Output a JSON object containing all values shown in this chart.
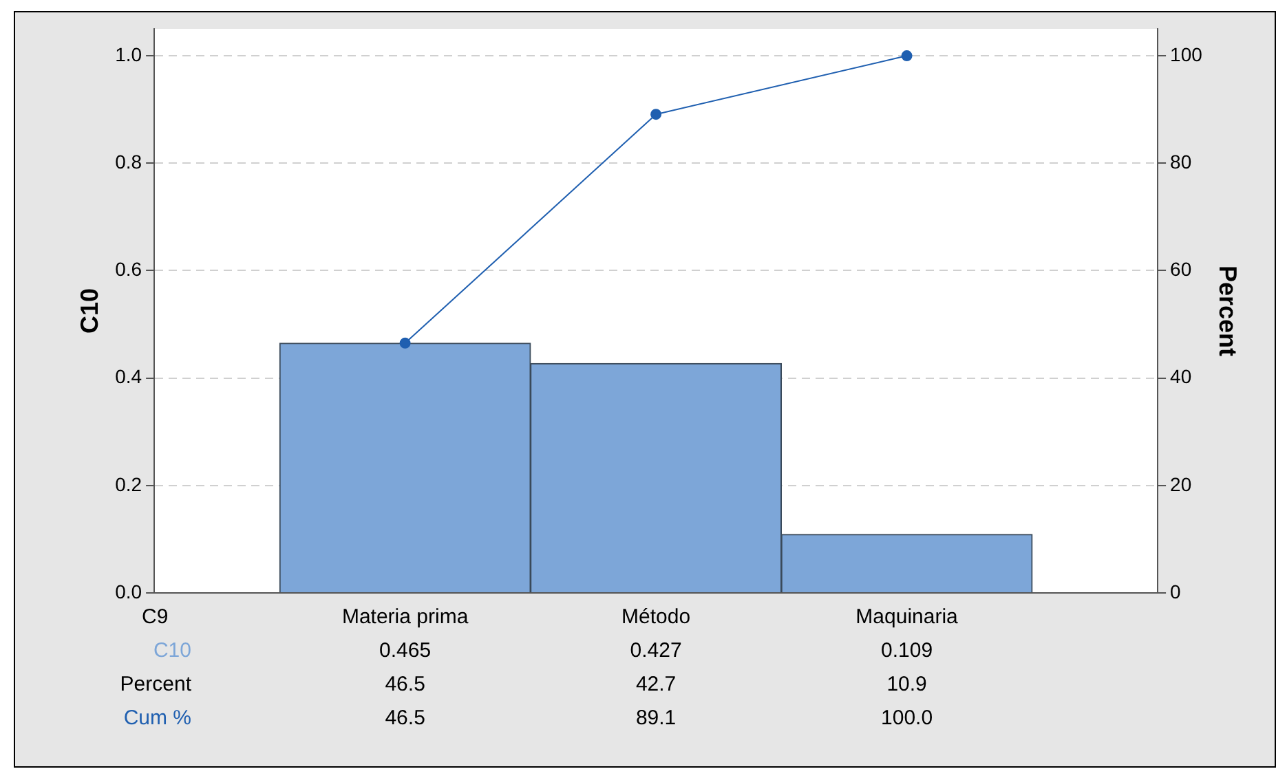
{
  "chart_data": {
    "type": "bar",
    "xlabel": "C9",
    "ylabel": "C10",
    "y2label": "Percent",
    "categories": [
      "Materia prima",
      "Método",
      "Maquinaria"
    ],
    "series": [
      {
        "name": "C10",
        "color": "#7da6d8",
        "values": [
          0.465,
          0.427,
          0.109
        ],
        "value_labels": [
          "0.465",
          "0.427",
          "0.109"
        ]
      },
      {
        "name": "Cum %",
        "type": "line",
        "axis": "y2",
        "color": "#1f5fb0",
        "values": [
          46.5,
          89.1,
          100.0
        ],
        "value_labels": [
          "46.5",
          "89.1",
          "100.0"
        ]
      }
    ],
    "annotations": [
      "46.5",
      "42.7",
      "10.9"
    ],
    "ylim": [
      0,
      1.05
    ],
    "yticks": [
      {
        "value": 0,
        "label": "0.0"
      },
      {
        "value": 0.2,
        "label": "0.2"
      },
      {
        "value": 0.4,
        "label": "0.4"
      },
      {
        "value": 0.6,
        "label": "0.6"
      },
      {
        "value": 0.8,
        "label": "0.8"
      },
      {
        "value": 1,
        "label": "1.0"
      }
    ],
    "y2lim": [
      0,
      105
    ],
    "y2ticks": [
      0,
      20,
      40,
      60,
      80,
      100
    ],
    "grid": "y",
    "legend": false,
    "marker": "circle",
    "line_style": "solid"
  }
}
